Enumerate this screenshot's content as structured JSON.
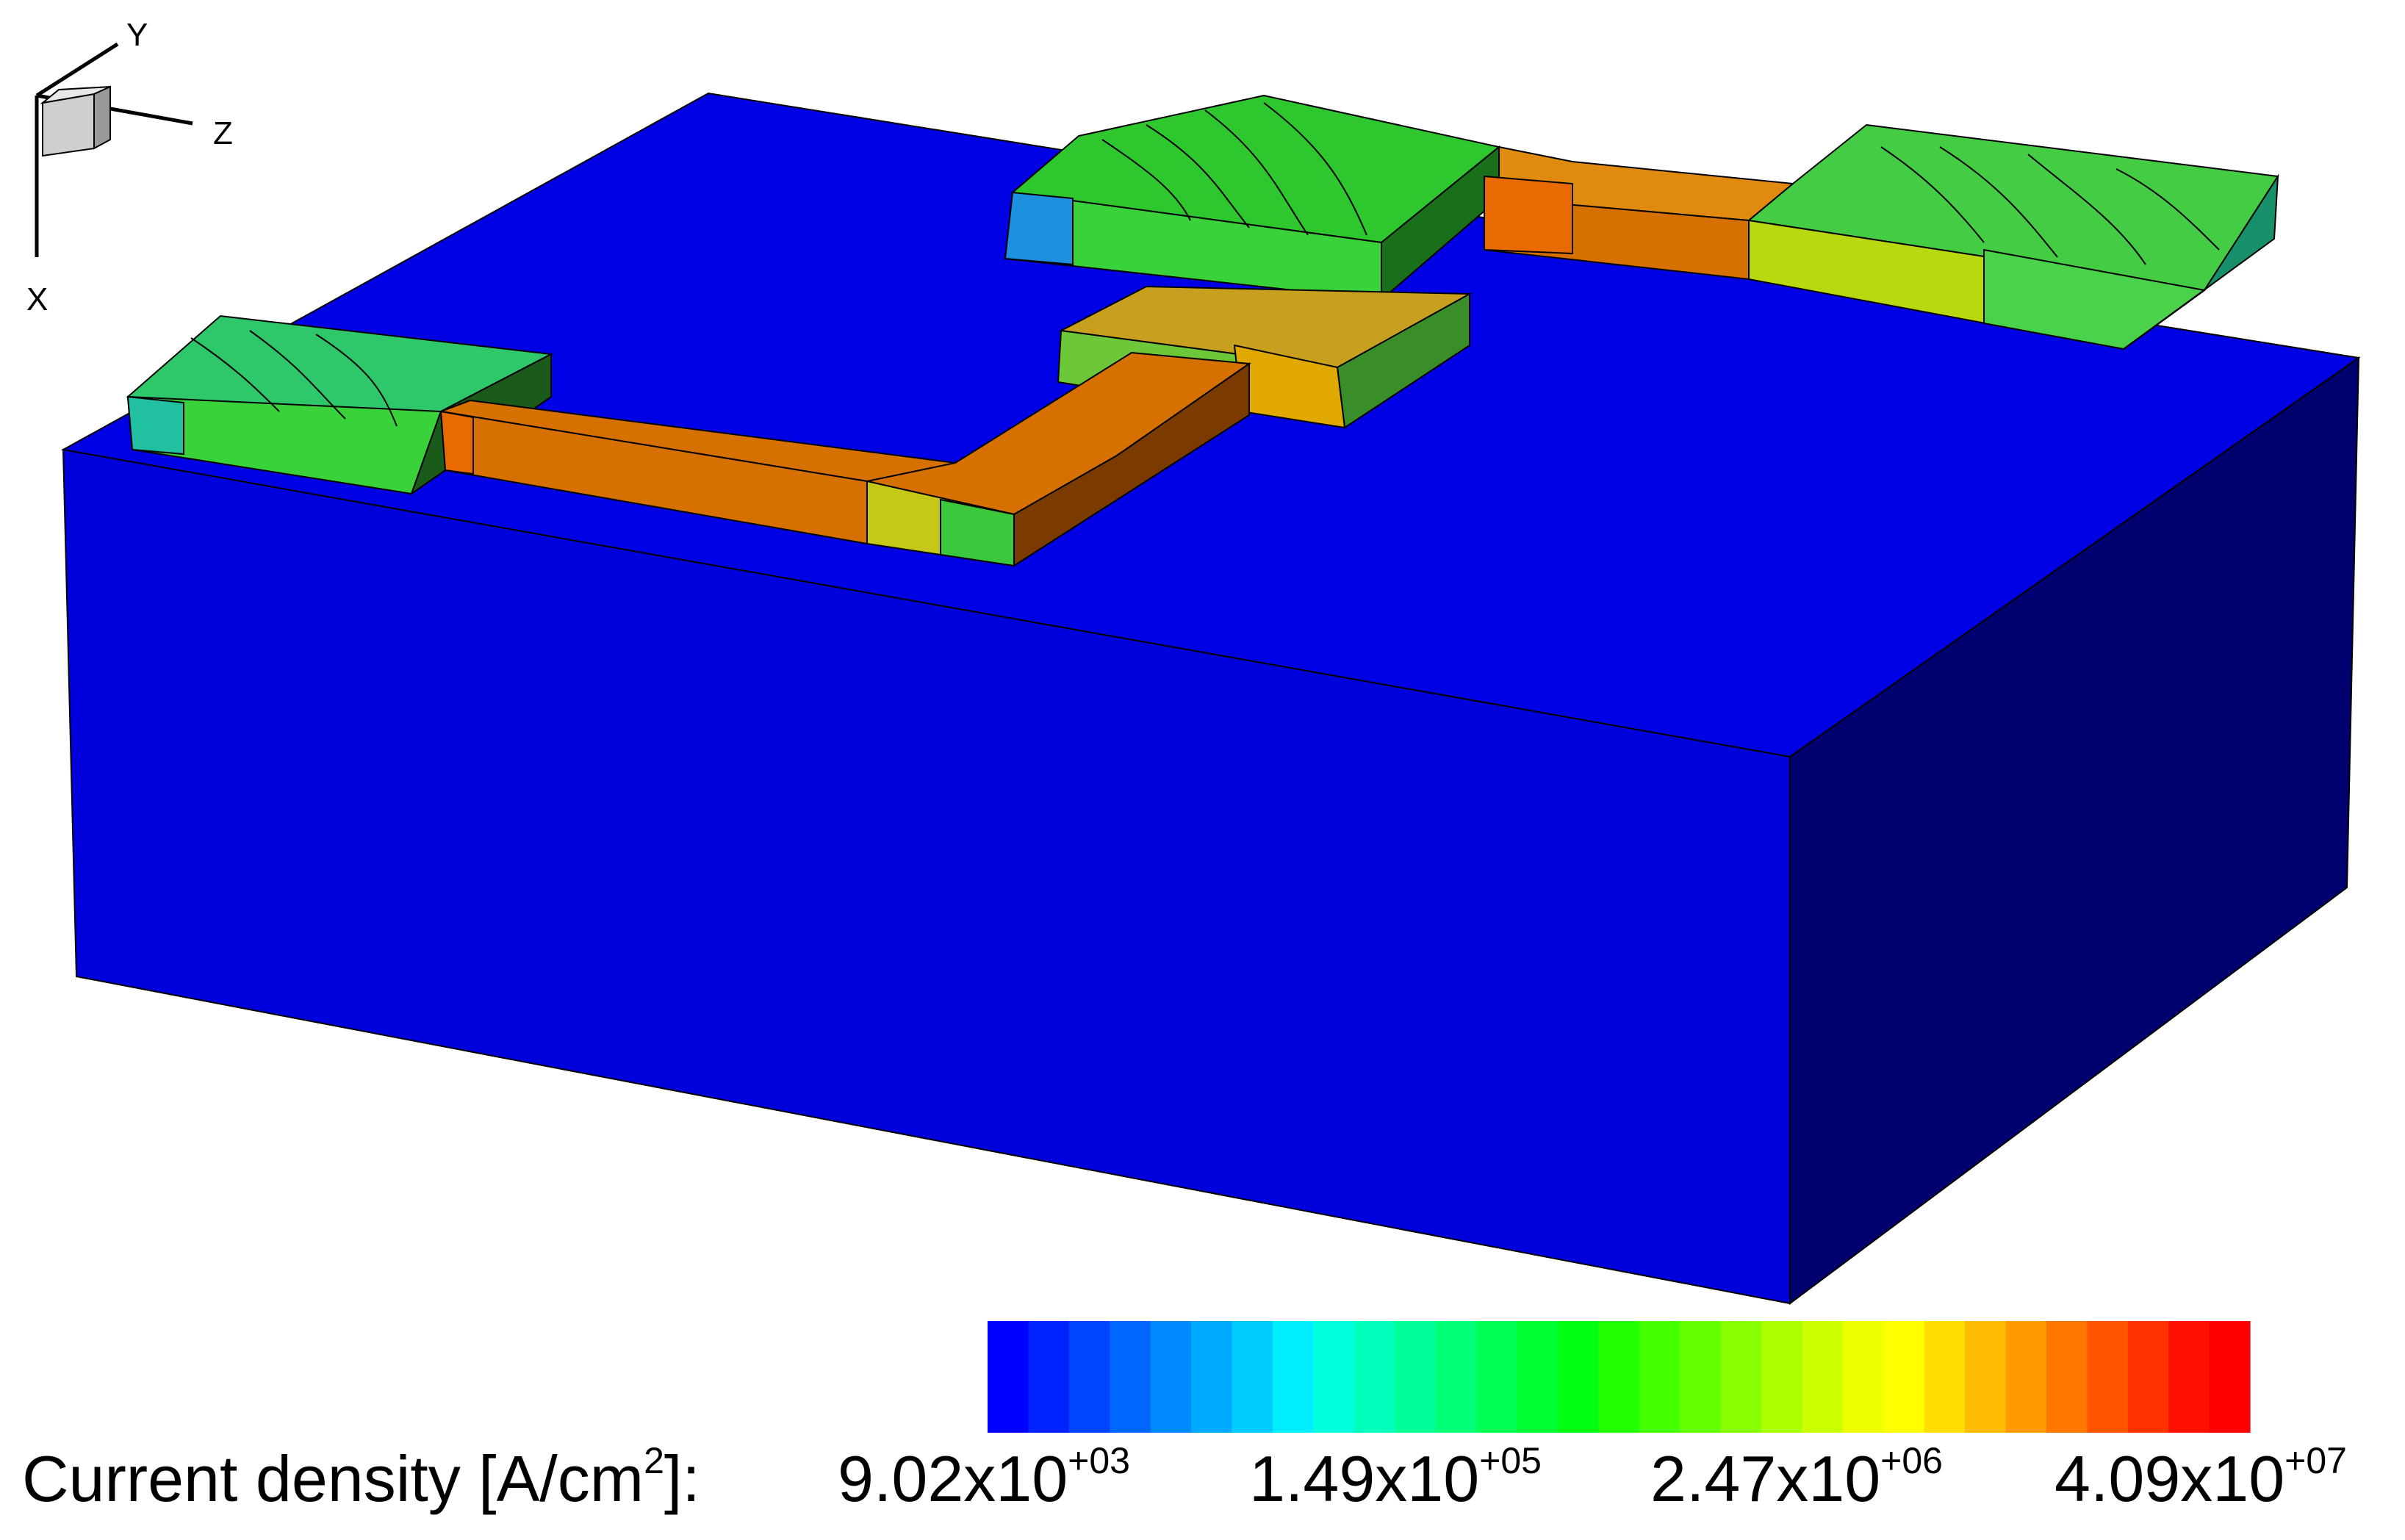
{
  "axes_triad": {
    "x_label": "X",
    "y_label": "Y",
    "z_label": "Z"
  },
  "legend": {
    "title_prefix": "Current density [A/cm",
    "title_sup": "2",
    "title_suffix": "]:",
    "ticks": [
      {
        "mantissa": "9.02x10",
        "exponent": "+03"
      },
      {
        "mantissa": "1.49x10",
        "exponent": "+05"
      },
      {
        "mantissa": "2.47x10",
        "exponent": "+06"
      },
      {
        "mantissa": "4.09x10",
        "exponent": "+07"
      }
    ],
    "colors": [
      "#0000ff",
      "#0022ff",
      "#0044ff",
      "#0066ff",
      "#0088ff",
      "#00aaff",
      "#00ccff",
      "#00eeff",
      "#00ffdd",
      "#00ffbb",
      "#00ff99",
      "#00ff77",
      "#00ff55",
      "#00ff33",
      "#00ff11",
      "#22ff00",
      "#44ff00",
      "#66ff00",
      "#88ff00",
      "#aaff00",
      "#ccff00",
      "#eeff00",
      "#ffff00",
      "#ffdd00",
      "#ffbb00",
      "#ff9900",
      "#ff7700",
      "#ff5500",
      "#ff3300",
      "#ff1100",
      "#ff0000"
    ]
  },
  "colors": {
    "substrate_front": "#0000dc",
    "substrate_top": "#0000e4",
    "substrate_side": "#00006e",
    "interconnect": "#d67000"
  }
}
